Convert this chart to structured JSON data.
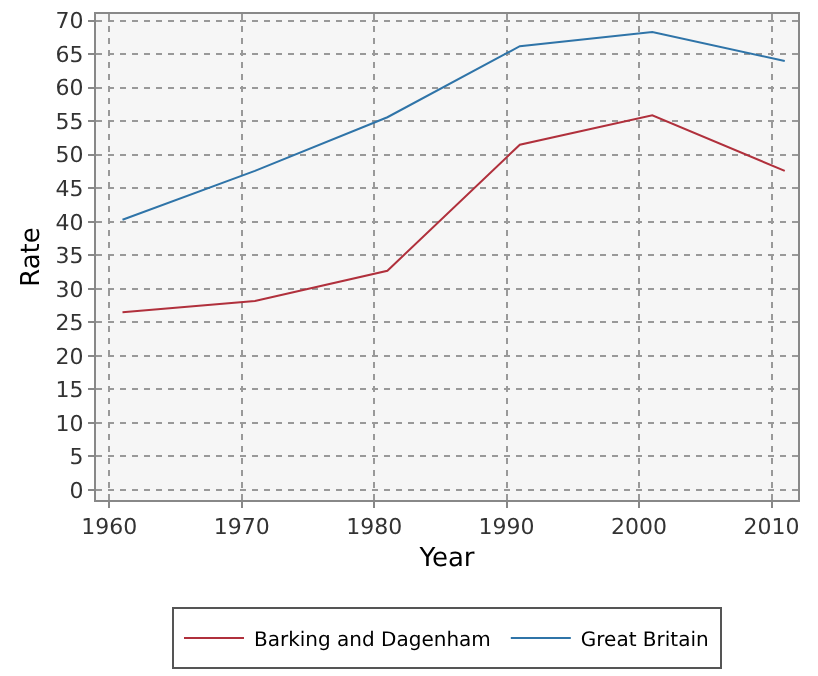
{
  "chart_data": {
    "type": "line",
    "xlabel": "Year",
    "ylabel": "Rate",
    "x": [
      1961,
      1971,
      1981,
      1991,
      2001,
      2011
    ],
    "series": [
      {
        "name": "Barking and Dagenham",
        "color": "#b0303c",
        "values": [
          26.5,
          28.2,
          32.7,
          51.5,
          55.9,
          47.6
        ]
      },
      {
        "name": "Great Britain",
        "color": "#2f74a8",
        "values": [
          40.3,
          47.6,
          55.6,
          66.2,
          68.3,
          64.0
        ]
      }
    ],
    "xlim": [
      1959,
      2012
    ],
    "xticks": [
      1960,
      1970,
      1980,
      1990,
      2000,
      2010
    ],
    "ylim": [
      -1.5,
      71
    ],
    "yticks": [
      0,
      5,
      10,
      15,
      20,
      25,
      30,
      35,
      40,
      45,
      50,
      55,
      60,
      65,
      70
    ],
    "grid": true,
    "legend": "bottom",
    "marker": "none",
    "line_style": "solid"
  }
}
